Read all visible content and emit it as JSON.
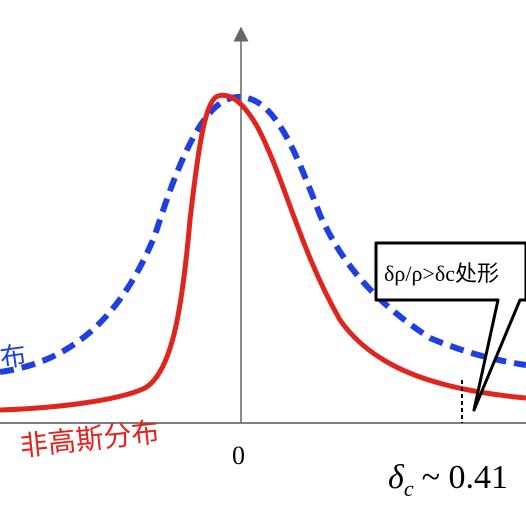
{
  "labels": {
    "gaussian_fragment": "布",
    "non_gaussian": "非高斯分布",
    "origin_tick": "0",
    "threshold_symbol": "δ",
    "threshold_subscript": "c",
    "threshold_value": "~ 0.41",
    "callout_text": "δρ/ρ>δc处形"
  },
  "colors": {
    "gaussian_curve": "#1f3fe0",
    "non_gaussian_curve": "#e0251f",
    "axis": "#666666",
    "text": "#000000"
  },
  "curves": {
    "gaussian_style": "dashed",
    "non_gaussian_style": "solid"
  }
}
